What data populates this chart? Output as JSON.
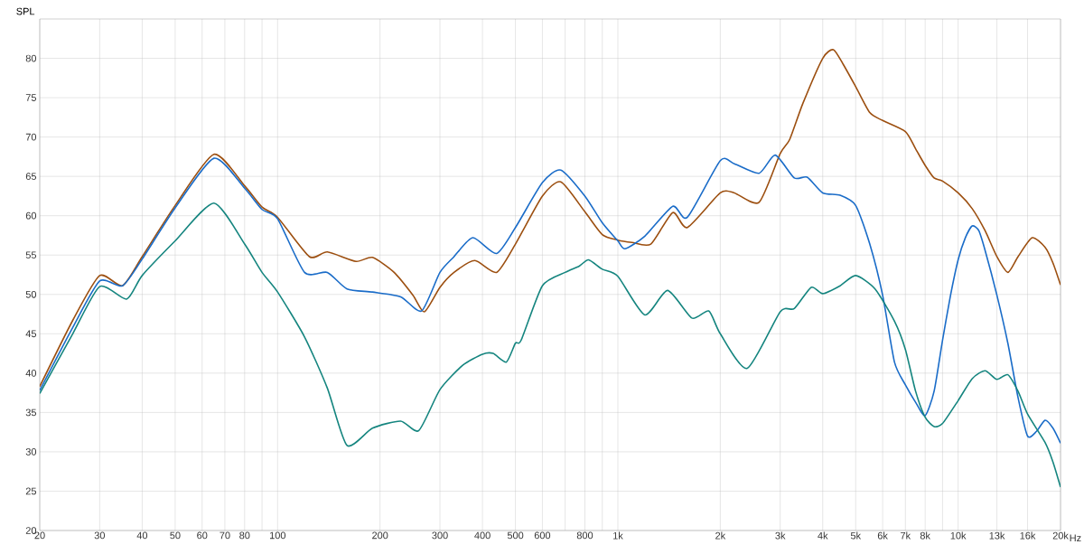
{
  "chart_data": {
    "type": "line",
    "ylabel": "SPL",
    "log": "x",
    "grid": true,
    "xlim": [
      20,
      20000
    ],
    "ylim": [
      20,
      85
    ],
    "xticks": [
      20,
      30,
      40,
      50,
      60,
      70,
      80,
      {
        "value": 90,
        "label": null
      },
      100,
      200,
      300,
      400,
      500,
      600,
      {
        "value": 700,
        "label": null
      },
      800,
      {
        "value": 900,
        "label": null
      },
      {
        "value": 1000,
        "label": "1k"
      },
      {
        "value": 2000,
        "label": "2k"
      },
      {
        "value": 3000,
        "label": "3k"
      },
      {
        "value": 4000,
        "label": "4k"
      },
      {
        "value": 5000,
        "label": "5k"
      },
      {
        "value": 6000,
        "label": "6k"
      },
      {
        "value": 7000,
        "label": "7k"
      },
      {
        "value": 8000,
        "label": "8k"
      },
      {
        "value": 9000,
        "label": null
      },
      {
        "value": 10000,
        "label": "10k"
      },
      {
        "value": 13000,
        "label": "13k"
      },
      {
        "value": 16000,
        "label": "16k"
      },
      {
        "value": 20000,
        "label": "20k"
      }
    ],
    "xlabel": "Hz",
    "yticks": [
      20,
      25,
      30,
      35,
      40,
      45,
      50,
      55,
      60,
      65,
      70,
      75,
      80
    ],
    "series": [
      {
        "color": "#9c4f10",
        "x": [
          20,
          25,
          30,
          35,
          40,
          50,
          65,
          80,
          90,
          100,
          124,
          140,
          170,
          190,
          220,
          250,
          270,
          300,
          330,
          380,
          440,
          500,
          600,
          680,
          800,
          900,
          1000,
          1100,
          1250,
          1450,
          1600,
          2000,
          2200,
          2600,
          3000,
          3200,
          3500,
          4000,
          4300,
          4600,
          5000,
          5500,
          6000,
          7000,
          7500,
          8000,
          8500,
          9000,
          10000,
          11000,
          12000,
          13000,
          14000,
          15000,
          16500,
          18000,
          19000,
          20000
        ],
        "values": [
          38.3,
          46.7,
          52.4,
          51.1,
          54.8,
          61.3,
          67.8,
          63.8,
          61.1,
          59.8,
          54.8,
          55.4,
          54.2,
          54.7,
          52.8,
          49.9,
          47.8,
          50.9,
          52.8,
          54.3,
          52.8,
          56.4,
          62.5,
          64.3,
          60.5,
          57.6,
          56.9,
          56.6,
          56.4,
          60.4,
          58.5,
          62.9,
          62.9,
          61.7,
          67.9,
          69.7,
          74.3,
          80.0,
          81.1,
          79.2,
          76.4,
          73.1,
          72.1,
          70.7,
          68.5,
          66.4,
          64.8,
          64.4,
          62.9,
          60.9,
          58.1,
          54.8,
          52.8,
          54.8,
          57.2,
          56.0,
          54.0,
          51.2
        ]
      },
      {
        "color": "#1a6cc8",
        "x": [
          20,
          25,
          30,
          35,
          40,
          50,
          65,
          80,
          90,
          100,
          120,
          140,
          160,
          190,
          230,
          265,
          300,
          330,
          375,
          440,
          500,
          600,
          680,
          800,
          900,
          1000,
          1050,
          1200,
          1450,
          1600,
          2000,
          2200,
          2600,
          2900,
          3300,
          3600,
          4000,
          4500,
          5000,
          5500,
          6000,
          6500,
          7000,
          7500,
          8000,
          8500,
          9000,
          9500,
          10000,
          10500,
          11000,
          11500,
          12000,
          13000,
          14000,
          15000,
          16000,
          17000,
          18000,
          19000,
          20000
        ],
        "values": [
          37.8,
          45.8,
          51.7,
          51.1,
          54.5,
          61.0,
          67.3,
          63.5,
          60.8,
          59.6,
          52.8,
          52.8,
          50.7,
          50.3,
          49.7,
          47.9,
          52.8,
          54.8,
          57.2,
          55.2,
          58.5,
          64.2,
          65.8,
          62.5,
          59.1,
          56.8,
          55.8,
          57.4,
          61.2,
          59.8,
          67.0,
          66.6,
          65.4,
          67.7,
          64.8,
          64.9,
          62.9,
          62.6,
          61.3,
          56.4,
          49.9,
          41.4,
          38.5,
          36.3,
          34.6,
          37.7,
          44.2,
          49.9,
          54.4,
          57.2,
          58.7,
          58.1,
          55.6,
          49.9,
          43.8,
          36.9,
          32.0,
          32.6,
          34.0,
          33.0,
          31.1
        ]
      },
      {
        "color": "#15857f",
        "x": [
          20,
          25,
          30,
          36,
          40,
          50,
          65,
          80,
          90,
          100,
          120,
          140,
          160,
          190,
          230,
          260,
          300,
          350,
          400,
          430,
          470,
          500,
          520,
          600,
          700,
          770,
          820,
          900,
          1000,
          1200,
          1400,
          1650,
          1850,
          2000,
          2400,
          3000,
          3300,
          3700,
          4000,
          4500,
          5000,
          5700,
          6500,
          7000,
          7500,
          8000,
          8500,
          9000,
          10000,
          11000,
          12000,
          13000,
          14000,
          15000,
          16000,
          18000,
          19000,
          20000
        ],
        "values": [
          37.4,
          45.0,
          51.0,
          49.4,
          52.4,
          56.8,
          61.6,
          56.4,
          52.8,
          50.3,
          44.6,
          38.1,
          30.8,
          33.0,
          33.9,
          32.7,
          37.9,
          41.0,
          42.4,
          42.5,
          41.4,
          43.8,
          44.2,
          51.1,
          52.8,
          53.6,
          54.4,
          53.2,
          52.3,
          47.4,
          50.5,
          47.0,
          47.9,
          45.0,
          40.6,
          47.8,
          48.2,
          50.9,
          50.1,
          51.1,
          52.4,
          50.7,
          46.6,
          43.0,
          37.7,
          34.4,
          33.2,
          33.6,
          36.5,
          39.3,
          40.3,
          39.2,
          39.8,
          37.7,
          34.8,
          31.2,
          28.7,
          25.5
        ]
      }
    ]
  }
}
